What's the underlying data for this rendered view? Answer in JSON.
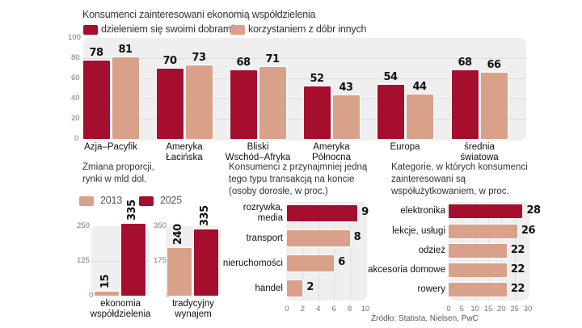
{
  "colors": {
    "dark": "#a50e2d",
    "light": "#d9a08a",
    "panel": "#efefef"
  },
  "chart_data": [
    {
      "type": "bar",
      "title": "Konsumenci zainteresowani ekonomią współdzielenia",
      "categories": [
        "Azja–Pacyfik",
        "Ameryka Łacińska",
        "Bliski Wschód–Afryka",
        "Ameryka Północna",
        "Europa",
        "średnia światowa"
      ],
      "category_lines": [
        [
          "Azja–Pacyfik"
        ],
        [
          "Ameryka",
          "Łacińska"
        ],
        [
          "Bliski",
          "Wschód–Afryka"
        ],
        [
          "Ameryka",
          "Północna"
        ],
        [
          "Europa"
        ],
        [
          "średnia",
          "światowa"
        ]
      ],
      "series": [
        {
          "name": "dzieleniem się swoimi dobrami",
          "color": "#a50e2d",
          "values": [
            78,
            70,
            68,
            52,
            54,
            68
          ]
        },
        {
          "name": "korzystaniem z dóbr innych",
          "color": "#d9a08a",
          "values": [
            81,
            73,
            71,
            43,
            44,
            66
          ]
        }
      ],
      "yticks": [
        0,
        20,
        40,
        60,
        80,
        100
      ],
      "ylim": [
        0,
        100
      ],
      "grid": true,
      "legend": "top-left"
    },
    {
      "type": "bar",
      "title": "Zmiana proporcji, rynki w mld dol.",
      "title_lines": [
        "Zmiana proporcji,",
        "rynki w mld dol."
      ],
      "legend_items": [
        {
          "name": "2013",
          "color": "#d9a08a"
        },
        {
          "name": "2025",
          "color": "#a50e2d"
        }
      ],
      "groups": [
        {
          "label_lines": [
            "ekonomia",
            "współdzielenia"
          ],
          "yticks": [
            0,
            125,
            250
          ],
          "ylim": [
            0,
            250
          ],
          "values": {
            "2013": 15,
            "2025": 335
          }
        },
        {
          "label_lines": [
            "tradycyjny",
            "wynajem"
          ],
          "yticks": [
            0,
            175,
            350
          ],
          "ylim": [
            0,
            350
          ],
          "values": {
            "2013": 240,
            "2025": 335
          }
        }
      ],
      "note": "2025 bars exceed ylim (clipped at top)"
    },
    {
      "type": "bar",
      "orientation": "horizontal",
      "title": "Konsumenci z przynajmniej jedną tego typu transakcją na koncie (osoby dorosłe, w proc.)",
      "title_lines": [
        "Konsumenci z przynajmniej jedną",
        "tego typu transakcją na koncie",
        "(osoby dorosłe, w proc.)"
      ],
      "categories": [
        "rozrywka, media",
        "transport",
        "nieruchomości",
        "handel"
      ],
      "category_lines": [
        [
          "rozrywka,",
          "media"
        ],
        [
          "transport"
        ],
        [
          "nieruchomości"
        ],
        [
          "handel"
        ]
      ],
      "values": [
        9,
        8,
        6,
        2
      ],
      "highlight_index": 0,
      "xticks": [
        0,
        2,
        4,
        6,
        8,
        10
      ],
      "xlim": [
        0,
        10
      ]
    },
    {
      "type": "bar",
      "orientation": "horizontal",
      "title": "Kategorie, w których konsumenci zainteresowani są współużytkowaniem, w proc.",
      "title_lines": [
        "Kategorie, w których konsumenci",
        "zainteresowani są",
        "współużytkowaniem, w proc."
      ],
      "categories": [
        "elektronika",
        "lekcje, usługi",
        "odzież",
        "akcesoria domowe",
        "rowery"
      ],
      "values": [
        28,
        26,
        22,
        22,
        22
      ],
      "highlight_index": 0,
      "xticks": [
        0,
        5,
        10,
        15,
        20,
        25,
        30
      ],
      "xlim": [
        0,
        30
      ]
    }
  ],
  "source": "Źródło: Statista, Nielsen, PwC"
}
